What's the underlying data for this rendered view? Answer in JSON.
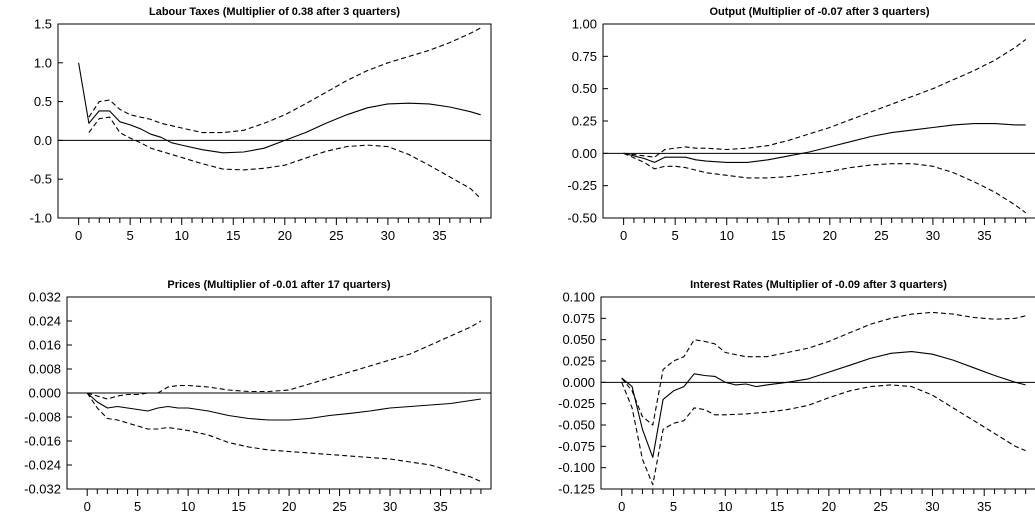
{
  "chart_data": [
    {
      "type": "line",
      "title": "Labour Taxes (Multiplier of  0.38  after  3  quarters)",
      "xlim": [
        -2,
        40
      ],
      "ylim": [
        -1.0,
        1.5
      ],
      "xticks": [
        0,
        5,
        10,
        15,
        20,
        25,
        30,
        35
      ],
      "yticks": [
        -1.0,
        -0.5,
        0.0,
        0.5,
        1.0,
        1.5
      ],
      "yticklabels": [
        "-1.0",
        "-0.5",
        "0.0",
        "0.5",
        "1.0",
        "1.5"
      ],
      "zero_line": true,
      "series": [
        {
          "style": "solid",
          "x": [
            0,
            1,
            2,
            3,
            4,
            5,
            6,
            7,
            8,
            9,
            10,
            12,
            14,
            16,
            18,
            20,
            22,
            24,
            26,
            28,
            30,
            32,
            34,
            36,
            38,
            39
          ],
          "y": [
            1.0,
            0.22,
            0.38,
            0.38,
            0.24,
            0.2,
            0.15,
            0.08,
            0.04,
            -0.03,
            -0.06,
            -0.12,
            -0.16,
            -0.15,
            -0.1,
            0.0,
            0.1,
            0.22,
            0.33,
            0.42,
            0.47,
            0.48,
            0.47,
            0.43,
            0.37,
            0.33
          ]
        },
        {
          "style": "dashed",
          "x": [
            1,
            2,
            3,
            4,
            5,
            6,
            7,
            8,
            10,
            12,
            14,
            16,
            18,
            20,
            22,
            24,
            26,
            28,
            30,
            32,
            34,
            36,
            38,
            39
          ],
          "y": [
            0.3,
            0.5,
            0.52,
            0.4,
            0.33,
            0.3,
            0.27,
            0.22,
            0.16,
            0.1,
            0.1,
            0.13,
            0.22,
            0.33,
            0.47,
            0.62,
            0.77,
            0.9,
            1.0,
            1.08,
            1.16,
            1.26,
            1.38,
            1.45
          ]
        },
        {
          "style": "dashed",
          "x": [
            1,
            2,
            3,
            4,
            5,
            6,
            7,
            8,
            10,
            12,
            14,
            16,
            18,
            20,
            22,
            24,
            26,
            28,
            30,
            32,
            34,
            36,
            38,
            39
          ],
          "y": [
            0.1,
            0.28,
            0.3,
            0.1,
            0.03,
            -0.03,
            -0.1,
            -0.14,
            -0.22,
            -0.3,
            -0.37,
            -0.38,
            -0.36,
            -0.32,
            -0.23,
            -0.14,
            -0.08,
            -0.06,
            -0.08,
            -0.18,
            -0.32,
            -0.47,
            -0.62,
            -0.75
          ]
        }
      ]
    },
    {
      "type": "line",
      "title": "Output (Multiplier of  -0.07  after  3  quarters)",
      "xlim": [
        -2,
        40
      ],
      "ylim": [
        -0.5,
        1.0
      ],
      "xticks": [
        0,
        5,
        10,
        15,
        20,
        25,
        30,
        35
      ],
      "yticks": [
        -0.5,
        -0.25,
        0.0,
        0.25,
        0.5,
        0.75,
        1.0
      ],
      "yticklabels": [
        "-0.50",
        "-0.25",
        "0.00",
        "0.25",
        "0.50",
        "0.75",
        "1.00"
      ],
      "zero_line": true,
      "series": [
        {
          "style": "solid",
          "x": [
            0,
            1,
            2,
            3,
            4,
            5,
            6,
            7,
            8,
            10,
            12,
            14,
            16,
            18,
            20,
            22,
            24,
            26,
            28,
            30,
            32,
            34,
            36,
            38,
            39
          ],
          "y": [
            0.0,
            -0.02,
            -0.04,
            -0.07,
            -0.03,
            -0.03,
            -0.03,
            -0.05,
            -0.06,
            -0.07,
            -0.07,
            -0.05,
            -0.02,
            0.01,
            0.05,
            0.09,
            0.13,
            0.16,
            0.18,
            0.2,
            0.22,
            0.23,
            0.23,
            0.22,
            0.22
          ]
        },
        {
          "style": "dashed",
          "x": [
            0,
            2,
            3,
            4,
            5,
            6,
            7,
            8,
            10,
            12,
            14,
            16,
            18,
            20,
            22,
            24,
            26,
            28,
            30,
            32,
            34,
            36,
            38,
            39
          ],
          "y": [
            0.0,
            -0.02,
            -0.03,
            0.03,
            0.04,
            0.05,
            0.04,
            0.04,
            0.03,
            0.04,
            0.06,
            0.1,
            0.15,
            0.2,
            0.26,
            0.32,
            0.38,
            0.44,
            0.5,
            0.57,
            0.64,
            0.72,
            0.82,
            0.88
          ]
        },
        {
          "style": "dashed",
          "x": [
            0,
            2,
            3,
            4,
            5,
            6,
            7,
            8,
            10,
            12,
            14,
            16,
            18,
            20,
            22,
            24,
            26,
            28,
            30,
            32,
            34,
            36,
            38,
            39
          ],
          "y": [
            0.0,
            -0.07,
            -0.12,
            -0.1,
            -0.1,
            -0.11,
            -0.13,
            -0.15,
            -0.17,
            -0.19,
            -0.19,
            -0.18,
            -0.16,
            -0.14,
            -0.11,
            -0.09,
            -0.08,
            -0.08,
            -0.1,
            -0.15,
            -0.22,
            -0.3,
            -0.4,
            -0.46
          ]
        }
      ]
    },
    {
      "type": "line",
      "title": "Prices (Multiplier of  -0.01  after  17  quarters)",
      "xlim": [
        -2,
        40
      ],
      "ylim": [
        -0.032,
        0.032
      ],
      "xticks": [
        0,
        5,
        10,
        15,
        20,
        25,
        30,
        35
      ],
      "yticks": [
        -0.032,
        -0.024,
        -0.016,
        -0.008,
        0.0,
        0.008,
        0.016,
        0.024,
        0.032
      ],
      "yticklabels": [
        "-0.032",
        "-0.024",
        "-0.016",
        "-0.008",
        "0.000",
        "0.008",
        "0.016",
        "0.024",
        "0.032"
      ],
      "zero_line": true,
      "series": [
        {
          "style": "solid",
          "x": [
            0,
            1,
            2,
            3,
            4,
            5,
            6,
            7,
            8,
            9,
            10,
            12,
            14,
            16,
            18,
            20,
            22,
            24,
            26,
            28,
            30,
            32,
            34,
            36,
            38,
            39
          ],
          "y": [
            0.0,
            -0.003,
            -0.005,
            -0.0045,
            -0.005,
            -0.0055,
            -0.006,
            -0.005,
            -0.0045,
            -0.005,
            -0.005,
            -0.006,
            -0.0075,
            -0.0085,
            -0.009,
            -0.009,
            -0.0085,
            -0.0075,
            -0.0068,
            -0.006,
            -0.005,
            -0.0045,
            -0.004,
            -0.0035,
            -0.0025,
            -0.002
          ]
        },
        {
          "style": "dashed",
          "x": [
            0,
            1,
            2,
            3,
            4,
            5,
            6,
            7,
            8,
            9,
            10,
            12,
            14,
            16,
            18,
            20,
            22,
            24,
            26,
            28,
            30,
            32,
            34,
            36,
            38,
            39
          ],
          "y": [
            0.0,
            -0.001,
            -0.002,
            -0.001,
            -0.0005,
            -0.0005,
            0.0,
            0.0,
            0.002,
            0.0025,
            0.0025,
            0.002,
            0.001,
            0.0005,
            0.0005,
            0.001,
            0.003,
            0.005,
            0.007,
            0.009,
            0.011,
            0.013,
            0.016,
            0.019,
            0.022,
            0.024
          ]
        },
        {
          "style": "dashed",
          "x": [
            0,
            1,
            2,
            3,
            4,
            5,
            6,
            7,
            8,
            9,
            10,
            12,
            14,
            16,
            18,
            20,
            22,
            24,
            26,
            28,
            30,
            32,
            34,
            36,
            38,
            39
          ],
          "y": [
            0.0,
            -0.005,
            -0.0085,
            -0.009,
            -0.01,
            -0.011,
            -0.012,
            -0.012,
            -0.0115,
            -0.012,
            -0.0125,
            -0.014,
            -0.0165,
            -0.018,
            -0.019,
            -0.0195,
            -0.02,
            -0.0205,
            -0.021,
            -0.0215,
            -0.022,
            -0.023,
            -0.024,
            -0.026,
            -0.028,
            -0.0295
          ]
        }
      ]
    },
    {
      "type": "line",
      "title": "Interest Rates (Multiplier of  -0.09  after  3  quarters)",
      "xlim": [
        -2,
        40
      ],
      "ylim": [
        -0.125,
        0.1
      ],
      "xticks": [
        0,
        5,
        10,
        15,
        20,
        25,
        30,
        35
      ],
      "yticks": [
        -0.125,
        -0.1,
        -0.075,
        -0.05,
        -0.025,
        0.0,
        0.025,
        0.05,
        0.075,
        0.1
      ],
      "yticklabels": [
        "-0.125",
        "-0.100",
        "-0.075",
        "-0.050",
        "-0.025",
        "0.000",
        "0.025",
        "0.050",
        "0.075",
        "0.100"
      ],
      "zero_line": true,
      "series": [
        {
          "style": "solid",
          "x": [
            0,
            1,
            2,
            3,
            4,
            5,
            6,
            7,
            8,
            9,
            10,
            11,
            12,
            13,
            14,
            16,
            18,
            20,
            22,
            24,
            26,
            28,
            30,
            32,
            34,
            36,
            38,
            39
          ],
          "y": [
            0.005,
            -0.005,
            -0.055,
            -0.088,
            -0.02,
            -0.01,
            -0.005,
            0.01,
            0.008,
            0.007,
            0.0,
            -0.003,
            -0.002,
            -0.005,
            -0.003,
            0.0,
            0.004,
            0.012,
            0.02,
            0.028,
            0.034,
            0.036,
            0.033,
            0.026,
            0.017,
            0.008,
            0.0,
            -0.003
          ]
        },
        {
          "style": "dashed",
          "x": [
            0,
            1,
            2,
            3,
            4,
            5,
            6,
            7,
            8,
            9,
            10,
            12,
            14,
            16,
            18,
            20,
            22,
            24,
            26,
            28,
            30,
            32,
            34,
            36,
            38,
            39
          ],
          "y": [
            0.005,
            -0.01,
            -0.04,
            -0.05,
            0.015,
            0.025,
            0.03,
            0.05,
            0.048,
            0.045,
            0.035,
            0.03,
            0.03,
            0.035,
            0.04,
            0.048,
            0.058,
            0.068,
            0.075,
            0.08,
            0.082,
            0.08,
            0.076,
            0.074,
            0.075,
            0.078
          ]
        },
        {
          "style": "dashed",
          "x": [
            0,
            1,
            2,
            3,
            4,
            5,
            6,
            7,
            8,
            9,
            10,
            12,
            14,
            16,
            18,
            20,
            22,
            24,
            26,
            28,
            30,
            32,
            34,
            36,
            38,
            39
          ],
          "y": [
            0.0,
            -0.03,
            -0.09,
            -0.12,
            -0.055,
            -0.048,
            -0.045,
            -0.03,
            -0.032,
            -0.038,
            -0.038,
            -0.037,
            -0.035,
            -0.032,
            -0.027,
            -0.018,
            -0.01,
            -0.005,
            -0.003,
            -0.005,
            -0.015,
            -0.03,
            -0.045,
            -0.06,
            -0.075,
            -0.08
          ]
        }
      ]
    }
  ]
}
